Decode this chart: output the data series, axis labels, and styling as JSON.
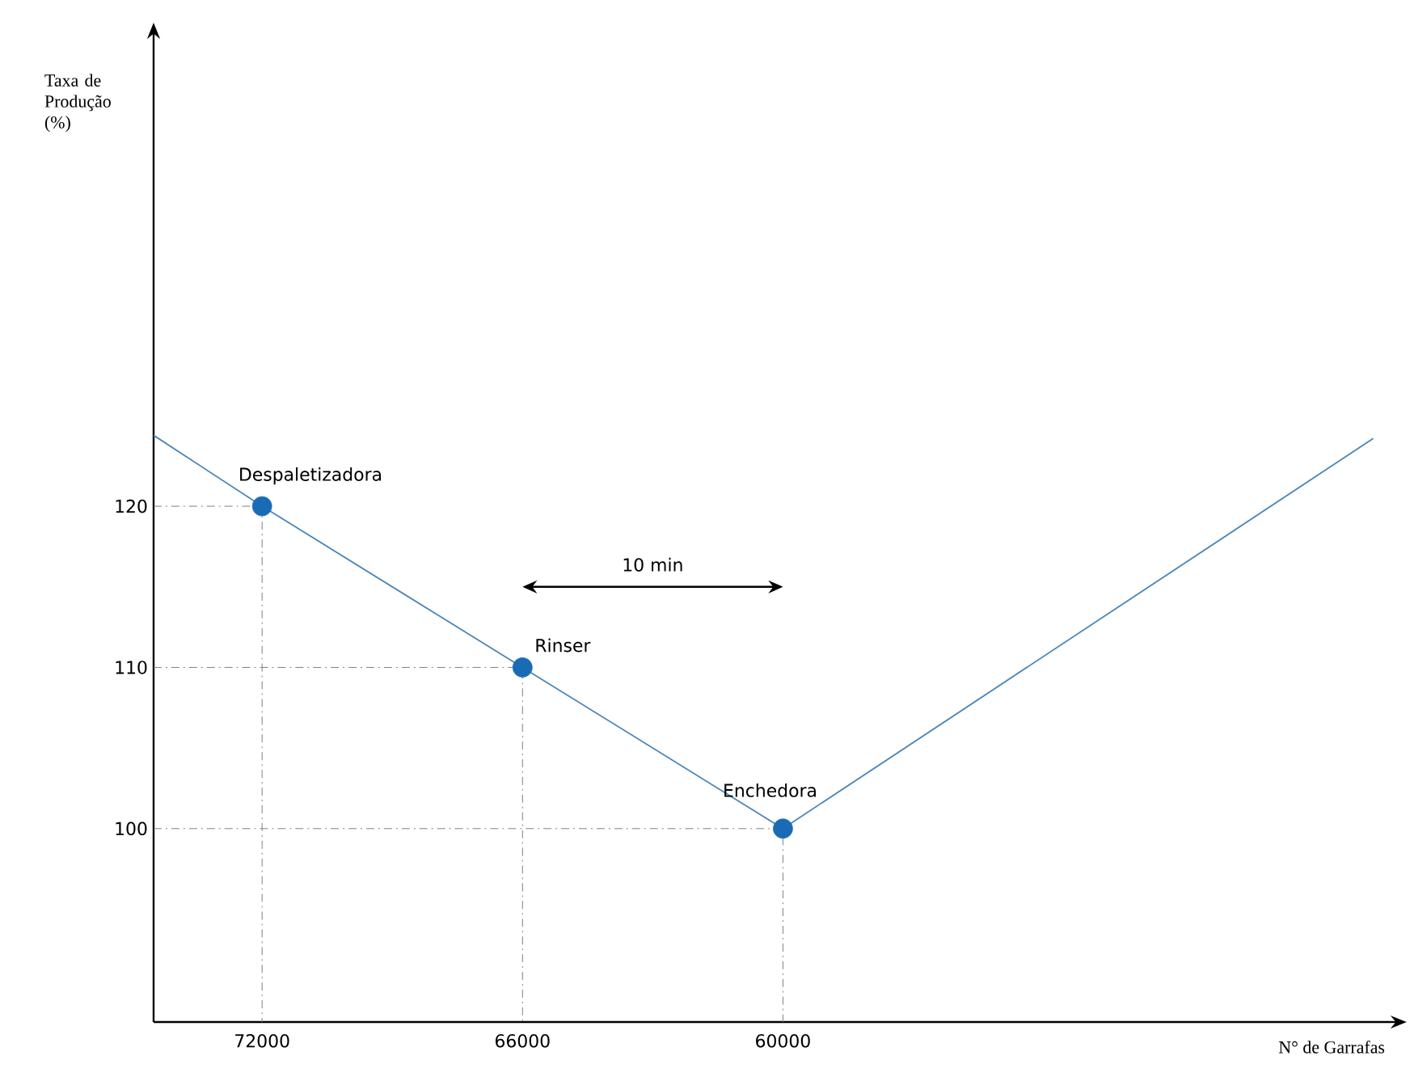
{
  "chart_data": {
    "type": "line",
    "xlabel": "N° de Garrafas",
    "ylabel": "Taxa de Produção (%)",
    "series": [
      {
        "color": "#4a86b8",
        "x": [
          74500,
          72000,
          66000,
          60000,
          46400
        ],
        "values": [
          124.4,
          120,
          110,
          100,
          124.2
        ]
      },
      {
        "type": "line",
        "color": "#808080",
        "line_style": "dashed",
        "x": [
          74500,
          72000,
          72000
        ],
        "values": [
          120,
          120,
          88
        ]
      },
      {
        "type": "line",
        "color": "#808080",
        "line_style": "dashed",
        "x": [
          74500,
          66000,
          66000
        ],
        "values": [
          110,
          110,
          88
        ]
      },
      {
        "type": "line",
        "color": "#808080",
        "line_style": "dashed",
        "x": [
          74500,
          60000,
          60000
        ],
        "values": [
          100,
          100,
          88
        ]
      },
      {
        "type": "scatter",
        "color": "#1a6bb5",
        "x": [
          72000,
          66000,
          60000
        ],
        "values": [
          120,
          110,
          100
        ]
      }
    ],
    "xlim": [
      74500,
      46000
    ],
    "ylim": [
      88,
      149
    ],
    "xticks": [
      72000,
      66000,
      60000
    ],
    "yticks": [
      100,
      110,
      120
    ],
    "annotations": [
      {
        "text": "Despaletizadora",
        "x": 72000,
        "y": 120
      },
      {
        "text": "Rinser",
        "x": 66000,
        "y": 110
      },
      {
        "text": "Enchedora",
        "x": 60000,
        "y": 100
      },
      "10 min"
    ]
  }
}
